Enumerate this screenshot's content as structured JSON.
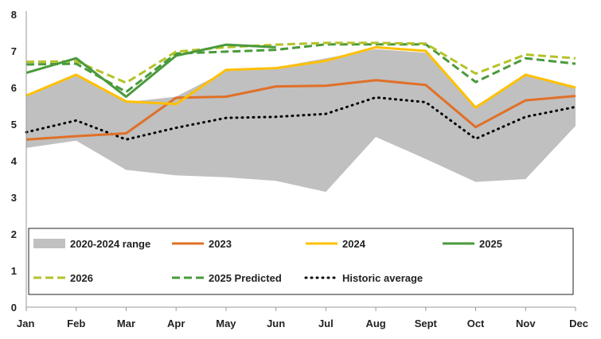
{
  "chart_data": {
    "type": "line",
    "title": "",
    "xlabel": "",
    "ylabel": "",
    "ylim": [
      0,
      8
    ],
    "yticks": [
      "0",
      "1",
      "2",
      "3",
      "4",
      "5",
      "6",
      "7",
      "8"
    ],
    "categories": [
      "Jan",
      "Feb",
      "Mar",
      "Apr",
      "May",
      "Jun",
      "Jul",
      "Aug",
      "Sept",
      "Oct",
      "Nov",
      "Dec"
    ],
    "range": {
      "name": "2020-2024 range",
      "color": "#c0c0c0",
      "low": [
        4.35,
        4.55,
        3.75,
        3.6,
        3.55,
        3.45,
        3.15,
        4.65,
        4.05,
        3.42,
        3.5,
        4.95
      ],
      "high": [
        5.75,
        6.35,
        5.6,
        5.75,
        6.45,
        6.55,
        6.8,
        7.05,
        6.95,
        5.5,
        6.35,
        6.0
      ]
    },
    "series": [
      {
        "name": "2023",
        "color": "#e07028",
        "style": "solid",
        "values": [
          4.58,
          4.67,
          4.75,
          5.72,
          5.75,
          6.03,
          6.05,
          6.2,
          6.07,
          4.92,
          5.65,
          5.77
        ]
      },
      {
        "name": "2024",
        "color": "#ffc000",
        "style": "solid",
        "values": [
          5.78,
          6.35,
          5.62,
          5.55,
          6.48,
          6.53,
          6.73,
          7.1,
          7.0,
          5.45,
          6.35,
          6.0
        ]
      },
      {
        "name": "2025",
        "color": "#4a9a3c",
        "style": "solid",
        "values": [
          6.4,
          6.8,
          5.75,
          6.87,
          7.17,
          7.1,
          null,
          null,
          null,
          null,
          null,
          null
        ]
      },
      {
        "name": "2026",
        "color": "#b5c229",
        "style": "dashed",
        "values": [
          6.7,
          6.72,
          6.13,
          6.98,
          7.1,
          7.17,
          7.22,
          7.22,
          7.2,
          6.38,
          6.9,
          6.8
        ]
      },
      {
        "name": "2025 Predicted",
        "color": "#4a9a3c",
        "style": "dashed",
        "values": [
          6.63,
          6.65,
          5.88,
          6.93,
          6.98,
          7.03,
          7.18,
          7.18,
          7.18,
          6.15,
          6.8,
          6.65
        ]
      },
      {
        "name": "Historic average",
        "color": "#000000",
        "style": "dotted",
        "values": [
          4.78,
          5.1,
          4.58,
          4.9,
          5.17,
          5.2,
          5.28,
          5.73,
          5.6,
          4.6,
          5.2,
          5.47
        ]
      }
    ],
    "legend": {
      "position": "inside-bottom",
      "entries": [
        "2020-2024 range",
        "2023",
        "2024",
        "2025",
        "2026",
        "2025 Predicted",
        "Historic average"
      ]
    },
    "grid": false
  }
}
